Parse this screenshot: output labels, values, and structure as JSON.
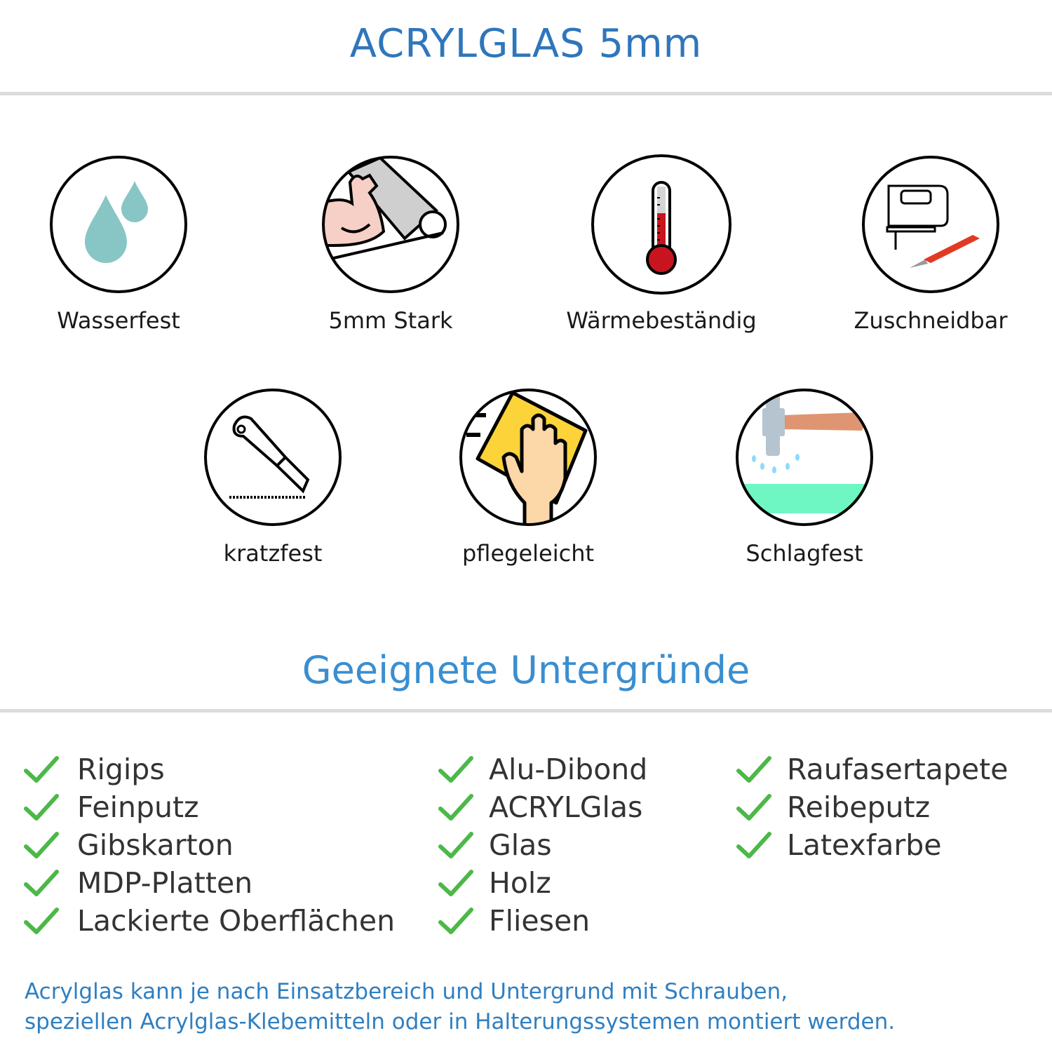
{
  "header": {
    "title": "ACRYLGLAS 5mm"
  },
  "features": [
    {
      "label": "Wasserfest",
      "icon": "water-drops-icon"
    },
    {
      "label": "5mm Stark",
      "icon": "strong-arm-icon"
    },
    {
      "label": "Wärmebeständig",
      "icon": "thermometer-icon"
    },
    {
      "label": "Zuschneidbar",
      "icon": "jigsaw-cutter-icon"
    },
    {
      "label": "kratzfest",
      "icon": "box-cutter-icon"
    },
    {
      "label": "pflegeleicht",
      "icon": "cleaning-hand-icon"
    },
    {
      "label": "Schlagfest",
      "icon": "hammer-icon"
    }
  ],
  "surfaces": {
    "title": "Geeignete Untergründe",
    "columns": [
      [
        "Rigips",
        "Feinputz",
        "Gibskarton",
        "MDP-Platten",
        "Lackierte Oberflächen"
      ],
      [
        "Alu-Dibond",
        "ACRYLGlas",
        "Glas",
        "Holz",
        "Fliesen"
      ],
      [
        "Raufasertapete",
        "Reibeputz",
        "Latexfarbe"
      ]
    ]
  },
  "footer": {
    "line1": "Acrylglas kann je nach Einsatzbereich und Untergrund mit Schrauben,",
    "line2": "speziellen Acrylglas-Klebemitteln oder in Halterungssystemen montiert werden."
  },
  "colors": {
    "title": "#2f76bb",
    "subtitle": "#3a8ed0",
    "check": "#4cb848",
    "footer": "#2f7fc1"
  }
}
